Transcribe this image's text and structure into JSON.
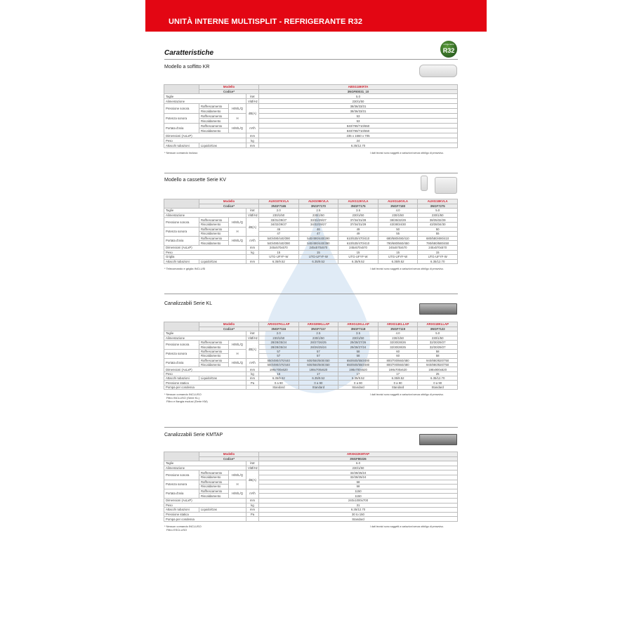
{
  "header": {
    "title": "UNITÀ INTERNE MULTISPLIT - REFRIGERANTE R32"
  },
  "heading": "Caratteristiche",
  "badge": {
    "small": "refrigerante",
    "big": "R32",
    "color": "#2f6b25"
  },
  "accent": "#e30613",
  "disclaimer": "I dati tecnici sono soggetti a variazioni senza obbligo di preavviso.",
  "sections": [
    {
      "title": "Modello a soffitto KR",
      "models": [
        "ABSG18KRTA"
      ],
      "codes": [
        "3NGF80031_10"
      ],
      "rows": [
        {
          "label": "Taglie",
          "unit": "kW",
          "values": [
            "5.0"
          ]
        },
        {
          "label": "Alimentazione",
          "unit": "V/Ø/Hz",
          "values": [
            "230/1/50"
          ]
        },
        {
          "label": "Pressione sonora",
          "mode": "H/M/L/Q",
          "unit": "dB(A)",
          "sub": [
            {
              "name": "Raffrescamento",
              "values": [
                "38/36/33/31"
              ]
            },
            {
              "name": "Riscaldamento",
              "values": [
                "38/36/33/31"
              ]
            }
          ]
        },
        {
          "label": "Potenza sonora",
          "mode": "H",
          "sub": [
            {
              "name": "Raffrescamento",
              "values": [
                "53"
              ]
            },
            {
              "name": "Riscaldamento",
              "values": [
                "53"
              ]
            }
          ]
        },
        {
          "label": "Portata d'aria",
          "mode": "H/M/L/Q",
          "unit": "m³/h",
          "sub": [
            {
              "name": "Raffrescamento",
              "values": [
                "840/790/710/650"
              ]
            },
            {
              "name": "Riscaldamento",
              "values": [
                "840/790/710/650"
              ]
            }
          ]
        },
        {
          "label": "Dimensioni (AxLxP)",
          "unit": "mm",
          "values": [
            "235 x 1660 x 705"
          ]
        },
        {
          "label": "Peso",
          "unit": "kg",
          "values": [
            "24"
          ]
        },
        {
          "label": "Attacchi tubazioni",
          "subl": "Liquido/Gas",
          "unit": "mm",
          "values": [
            "6.35/12.70"
          ]
        }
      ],
      "footnotes": [
        "* Nessun comando incluso"
      ]
    },
    {
      "title": "Modello a cassette Serie KV",
      "models": [
        "AUXG07KVLA",
        "AUXG09KVLA",
        "AUXG12KVLA",
        "AUXG14KVLA",
        "AUXG18KVLA"
      ],
      "codes": [
        "3NGF7165",
        "3NGF7170",
        "3NGF7175",
        "3NGF7180",
        "3NGF7275"
      ],
      "rows": [
        {
          "label": "Taglie",
          "unit": "kW",
          "values": [
            "2.0",
            "2.5",
            "3.5",
            "4.0",
            "5.0"
          ]
        },
        {
          "label": "Alimentazione",
          "unit": "V/Ø/Hz",
          "values": [
            "230/1/50",
            "230/1/50",
            "230/1/50",
            "230/1/50",
            "230/1/50"
          ]
        },
        {
          "label": "Pressione sonora",
          "mode": "H/M/L/Q",
          "unit": "dB(A)",
          "sub": [
            {
              "name": "Raffrescamento",
              "values": [
                "33/31/29/27",
                "33/31/29/27",
                "37/34/31/28",
                "38/35/32/29",
                "38/35/32/29"
              ]
            },
            {
              "name": "Riscaldamento",
              "values": [
                "34/32/29/27",
                "34/32/29/27",
                "37/34/31/29",
                "43/38/34/30",
                "43/38/34/30"
              ]
            }
          ]
        },
        {
          "label": "Potenza sonora",
          "mode": "H",
          "sub": [
            {
              "name": "Raffrescamento",
              "values": [
                "46",
                "46",
                "49",
                "50",
                "50"
              ]
            },
            {
              "name": "Riscaldamento",
              "values": [
                "47",
                "47",
                "49",
                "55",
                "55"
              ]
            }
          ]
        },
        {
          "label": "Portata d'aria",
          "mode": "H/M/L/Q",
          "unit": "m³/h",
          "sub": [
            {
              "name": "Raffrescamento",
              "values": [
                "540/490/440/390",
                "540/490/440/390",
                "610/530/470/410",
                "680/580/490/410",
                "680/580/490/410"
              ]
            },
            {
              "name": "Riscaldamento",
              "values": [
                "540/490/440/390",
                "540/490/440/390",
                "610/530/470/410",
                "790/680/560/450",
                "790/680/580/450"
              ]
            }
          ]
        },
        {
          "label": "Dimensioni (AxLxP)",
          "unit": "mm",
          "values": [
            "245x570x570",
            "245x570x570",
            "245x570x570",
            "245x570x570",
            "245x570x570"
          ]
        },
        {
          "label": "Peso",
          "unit": "kg",
          "values": [
            "15",
            "15",
            "15",
            "15",
            "15"
          ]
        },
        {
          "label": "Griglia",
          "unit": "",
          "values": [
            "UTG-UFYF-W",
            "UTG-UFYF-W",
            "UTG-UFYF-W",
            "UTG-UFYF-W",
            "UTG-UFYF-W"
          ]
        },
        {
          "label": "Attacchi tubazioni",
          "subl": "Liquido/Gas",
          "unit": "mm",
          "values": [
            "6.35/9.52",
            "6.35/9.52",
            "6.35/9.52",
            "6.35/9.52",
            "6.35/12.70"
          ]
        }
      ],
      "footnotes": [
        "* Telecomando e griglia INCLUSI"
      ]
    },
    {
      "title": "Canalizzabili Serie KL",
      "models": [
        "ARXG07KLLAP",
        "ARXG09KLLAP",
        "ARXG12KLLAP",
        "ARXG14KLLAP",
        "ARXG18KLLAP"
      ],
      "codes": [
        "3NGF7116",
        "3NGF7117",
        "3NGF7118",
        "3NGF7119",
        "3NGF7122"
      ],
      "rows": [
        {
          "label": "Taglie",
          "unit": "kW",
          "values": [
            "2.0",
            "2.5",
            "3.5",
            "4.0",
            "5.0"
          ]
        },
        {
          "label": "Alimentazione",
          "unit": "V/Ø/Hz",
          "values": [
            "230/1/50",
            "230/1/50",
            "230/1/50",
            "230/1/50",
            "230/1/50"
          ]
        },
        {
          "label": "Pressione sonora",
          "mode": "H/M/L/Q",
          "unit": "dB(A)",
          "sub": [
            {
              "name": "Raffrescamento",
              "values": [
                "28/28/25/24",
                "28/27/26/25",
                "29/28/27/26",
                "32/30/28/26",
                "32/30/29/27"
              ]
            },
            {
              "name": "Riscaldamento",
              "values": [
                "28/28/25/24",
                "28/26/25/24",
                "29/28/27/24",
                "32/30/28/25",
                "32/30/29/27"
              ]
            }
          ]
        },
        {
          "label": "Potenza sonora",
          "mode": "H",
          "sub": [
            {
              "name": "Raffrescamento",
              "values": [
                "57",
                "57",
                "58",
                "60",
                "58"
              ]
            },
            {
              "name": "Riscaldamento",
              "values": [
                "57",
                "57",
                "58",
                "60",
                "58"
              ]
            }
          ]
        },
        {
          "label": "Portata d'aria",
          "mode": "H/M/L/Q",
          "unit": "m³/h",
          "sub": [
            {
              "name": "Raffrescamento",
              "values": [
                "550/490/470/440",
                "600/550/500/450",
                "650/600/550/480",
                "800/700/660/480",
                "940/880/820/750"
              ]
            },
            {
              "name": "Riscaldamento",
              "values": [
                "550/490/470/440",
                "600/550/500/450",
                "650/600/550/480",
                "800/700/660/480",
                "940/880/820/750"
              ]
            }
          ]
        },
        {
          "label": "Dimensioni (AxLxP)",
          "unit": "mm",
          "values": [
            "198x700x620",
            "198x700x620",
            "198x700x620",
            "198x700x620",
            "198x900x620"
          ]
        },
        {
          "label": "Peso",
          "unit": "kg",
          "values": [
            "16",
            "17",
            "17",
            "17",
            "25"
          ]
        },
        {
          "label": "Attacchi tubazioni",
          "subl": "Liquido/Gas",
          "unit": "mm",
          "values": [
            "6.35/9.52",
            "6.35/9.52",
            "6.35/9.52",
            "6.35/9.52",
            "6.35/12.70"
          ]
        },
        {
          "label": "Pressione statica",
          "unit": "Pa",
          "values": [
            "0 a 90",
            "0 a 90",
            "0 a 90",
            "0 a 90",
            "0 a 90"
          ]
        },
        {
          "label": "Pompa per condensa",
          "unit": "",
          "values": [
            "Standard",
            "Standard",
            "Standard",
            "Standard",
            "Standard"
          ]
        }
      ],
      "footnotes": [
        "* Nessun comando INCLUSO",
        "Filtro INCLUSO (Serie KL)",
        "Filtro e flangia esclusi (Serie KM)"
      ]
    },
    {
      "title": "Canalizzabili Serie KMTAP",
      "models": [
        "ARXH22KMTAP"
      ],
      "codes": [
        "3NGF80226"
      ],
      "rows": [
        {
          "label": "Taglie",
          "unit": "kW",
          "values": [
            "6.0"
          ]
        },
        {
          "label": "Alimentazione",
          "unit": "V/Ø/Hz",
          "values": [
            "230/1/50"
          ]
        },
        {
          "label": "Pressione sonora",
          "mode": "H/M/L/Q",
          "unit": "dB(A)",
          "sub": [
            {
              "name": "Raffrescamento",
              "values": [
                "32/28/25/24"
              ]
            },
            {
              "name": "Riscaldamento",
              "values": [
                "32/28/25/24"
              ]
            }
          ]
        },
        {
          "label": "Potenza sonora",
          "mode": "H",
          "sub": [
            {
              "name": "Raffrescamento",
              "values": [
                "58"
              ]
            },
            {
              "name": "Riscaldamento",
              "values": [
                "58"
              ]
            }
          ]
        },
        {
          "label": "Portata d'aria",
          "mode": "H/M/L/Q",
          "unit": "m³/h",
          "sub": [
            {
              "name": "Raffrescamento",
              "values": [
                "1150"
              ]
            },
            {
              "name": "Riscaldamento",
              "values": [
                "1150"
              ]
            }
          ]
        },
        {
          "label": "Dimensioni (AxLxP)",
          "unit": "mm",
          "values": [
            "240x1000x700"
          ]
        },
        {
          "label": "Peso",
          "unit": "kg",
          "values": [
            "31"
          ]
        },
        {
          "label": "Attacchi tubazioni",
          "subl": "Liquido/Gas",
          "unit": "mm",
          "values": [
            "6.35/12.70"
          ]
        },
        {
          "label": "Pressione statica",
          "unit": "Pa",
          "values": [
            "30 to 150"
          ]
        },
        {
          "label": "Pompa per condensa",
          "unit": "",
          "values": [
            "Standard"
          ]
        }
      ],
      "footnotes": [
        "* Nessun comando INCLUSO",
        "Filtro ESCLUSO"
      ]
    }
  ],
  "labels": {
    "model": "Modello",
    "code": "Codice*"
  }
}
